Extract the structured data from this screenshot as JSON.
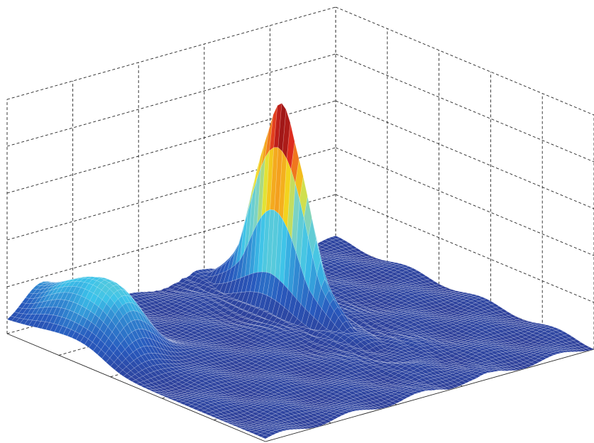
{
  "chart_data": {
    "type": "surface",
    "title": "",
    "xlabel": "",
    "ylabel": "",
    "zlabel": "",
    "colormap": "jet",
    "colors": {
      "floor": "#2e3f99",
      "peak": "#7a0c12",
      "mid": "#f2e41e",
      "ridge": "#3cc3ea",
      "mesh": "#ffffff",
      "grid": "#262626"
    },
    "xlim": [
      0,
      1
    ],
    "ylim": [
      0,
      1
    ],
    "zlim": [
      0,
      1
    ],
    "grid": true,
    "features": {
      "ridge": {
        "height": 0.32,
        "along_front_edge": true
      },
      "peak": {
        "x": 0.6,
        "y": 0.7,
        "height": 0.82
      }
    }
  }
}
